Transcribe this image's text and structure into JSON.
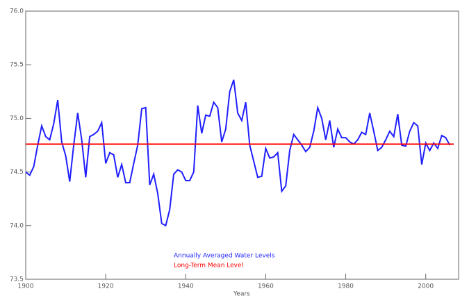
{
  "chart_data": {
    "type": "line",
    "x_label": "Years",
    "x": [
      1900,
      1901,
      1902,
      1903,
      1904,
      1905,
      1906,
      1907,
      1908,
      1909,
      1910,
      1911,
      1912,
      1913,
      1914,
      1915,
      1916,
      1917,
      1918,
      1919,
      1920,
      1921,
      1922,
      1923,
      1924,
      1925,
      1926,
      1927,
      1928,
      1929,
      1930,
      1931,
      1932,
      1933,
      1934,
      1935,
      1936,
      1937,
      1938,
      1939,
      1940,
      1941,
      1942,
      1943,
      1944,
      1945,
      1946,
      1947,
      1948,
      1949,
      1950,
      1951,
      1952,
      1953,
      1954,
      1955,
      1956,
      1957,
      1958,
      1959,
      1960,
      1961,
      1962,
      1963,
      1964,
      1965,
      1966,
      1967,
      1968,
      1969,
      1970,
      1971,
      1972,
      1973,
      1974,
      1975,
      1976,
      1977,
      1978,
      1979,
      1980,
      1981,
      1982,
      1983,
      1984,
      1985,
      1986,
      1987,
      1988,
      1989,
      1990,
      1991,
      1992,
      1993,
      1994,
      1995,
      1996,
      1997,
      1998,
      1999,
      2000,
      2001,
      2002,
      2003,
      2004,
      2005,
      2006
    ],
    "series": [
      {
        "name": "Annually Averaged Water Levels",
        "color": "#1f1fff",
        "values": [
          74.5,
          74.47,
          74.55,
          74.75,
          74.93,
          74.83,
          74.8,
          74.95,
          75.17,
          74.78,
          74.65,
          74.41,
          74.75,
          75.05,
          74.8,
          74.45,
          74.83,
          74.85,
          74.88,
          74.96,
          74.58,
          74.68,
          74.66,
          74.45,
          74.57,
          74.4,
          74.4,
          74.58,
          74.75,
          75.09,
          75.1,
          74.38,
          74.48,
          74.3,
          74.02,
          74.0,
          74.15,
          74.48,
          74.52,
          74.5,
          74.42,
          74.42,
          74.5,
          75.12,
          74.86,
          75.03,
          75.02,
          75.15,
          75.1,
          74.78,
          74.9,
          75.25,
          75.36,
          75.05,
          74.98,
          75.15,
          74.75,
          74.6,
          74.45,
          74.46,
          74.72,
          74.63,
          74.64,
          74.68,
          74.32,
          74.37,
          74.7,
          74.85,
          74.8,
          74.75,
          74.69,
          74.73,
          74.88,
          75.1,
          75.0,
          74.8,
          74.98,
          74.73,
          74.9,
          74.82,
          74.82,
          74.78,
          74.76,
          74.8,
          74.87,
          74.85,
          75.05,
          74.88,
          74.7,
          74.73,
          74.8,
          74.88,
          74.83,
          75.04,
          74.75,
          74.74,
          74.88,
          74.96,
          74.93,
          74.57,
          74.77,
          74.7,
          74.77,
          74.72,
          74.84,
          74.82,
          74.75
        ]
      }
    ],
    "mean": {
      "name": "Long-Term Mean Level",
      "color": "#ff0000",
      "value": 74.76
    },
    "xlim": [
      1900,
      2007
    ],
    "xticks": [
      1900,
      1920,
      1940,
      1960,
      1980,
      2000
    ],
    "ylim": [
      73.5,
      76.0
    ],
    "yticks": [
      73.5,
      {
        "value": 74,
        "label": "74.0"
      },
      74.5,
      {
        "value": 75,
        "label": "75.0"
      },
      75.5,
      {
        "value": 76,
        "label": "76.0"
      }
    ]
  }
}
